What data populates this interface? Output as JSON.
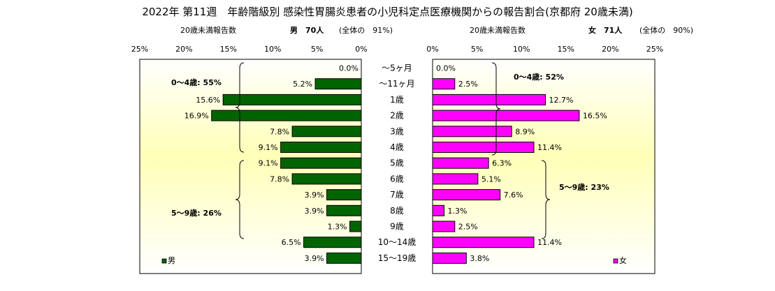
{
  "title": "2022年 第11週　年齢階級別 感染性胃腸炎患者の小児科定点医療機関からの報告割合(京都府 20歳未満)",
  "left_header": {
    "count_label": "20歳未満報告数",
    "sex_count": "男　70人",
    "share": "(全体の　91%)"
  },
  "right_header": {
    "count_label": "20歳未満報告数",
    "sex_count": "女　71人",
    "share": "(全体の　90%)"
  },
  "chart_data": [
    {
      "type": "bar",
      "orientation": "horizontal",
      "direction": "right-to-left",
      "categories": [
        "～5ヶ月",
        "～11ヶ月",
        "1歳",
        "2歳",
        "3歳",
        "4歳",
        "5歳",
        "6歳",
        "7歳",
        "8歳",
        "9歳",
        "10～14歳",
        "15～19歳"
      ],
      "series": [
        {
          "name": "男",
          "color": "#006400",
          "values": [
            0.0,
            5.2,
            15.6,
            16.9,
            7.8,
            9.1,
            9.1,
            7.8,
            3.9,
            3.9,
            1.3,
            6.5,
            3.9
          ],
          "labels": [
            "0.0%",
            "5.2%",
            "15.6%",
            "16.9%",
            "7.8%",
            "9.1%",
            "9.1%",
            "7.8%",
            "3.9%",
            "3.9%",
            "1.3%",
            "6.5%",
            "3.9%"
          ]
        }
      ],
      "xlim": [
        0,
        25
      ],
      "xticks": [
        "0%",
        "5%",
        "10%",
        "15%",
        "20%",
        "25%"
      ],
      "annotations": [
        "0～4歳: 55%",
        "5～9歳: 26%"
      ],
      "legend": "bottom-left"
    },
    {
      "type": "bar",
      "orientation": "horizontal",
      "direction": "left-to-right",
      "categories": [
        "～5ヶ月",
        "～11ヶ月",
        "1歳",
        "2歳",
        "3歳",
        "4歳",
        "5歳",
        "6歳",
        "7歳",
        "8歳",
        "9歳",
        "10～14歳",
        "15～19歳"
      ],
      "series": [
        {
          "name": "女",
          "color": "#ff00ff",
          "values": [
            0.0,
            2.5,
            12.7,
            16.5,
            8.9,
            11.4,
            6.3,
            5.1,
            7.6,
            1.3,
            2.5,
            11.4,
            3.8
          ],
          "labels": [
            "0.0%",
            "2.5%",
            "12.7%",
            "16.5%",
            "8.9%",
            "11.4%",
            "6.3%",
            "5.1%",
            "7.6%",
            "1.3%",
            "2.5%",
            "11.4%",
            "3.8%"
          ]
        }
      ],
      "xlim": [
        0,
        25
      ],
      "xticks": [
        "0%",
        "5%",
        "10%",
        "15%",
        "20%",
        "25%"
      ],
      "annotations": [
        "0～4歳: 52%",
        "5～9歳: 23%"
      ],
      "legend": "bottom-right"
    }
  ]
}
